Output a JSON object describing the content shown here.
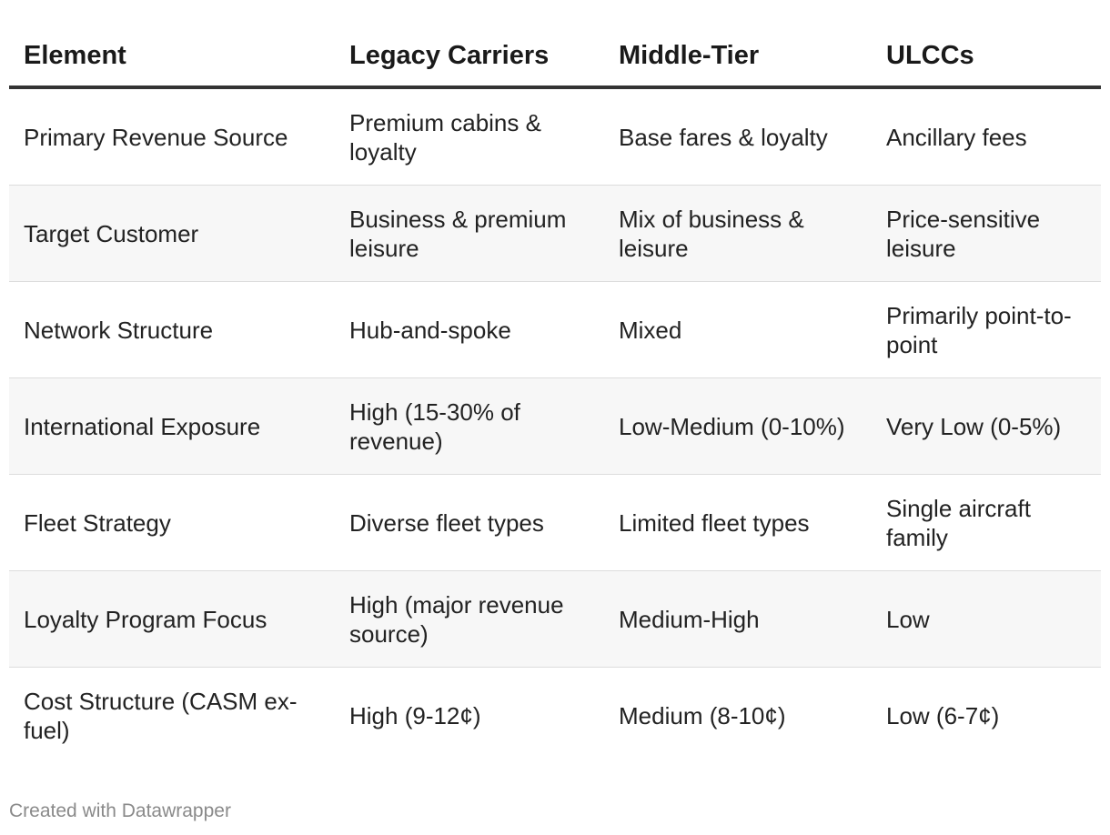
{
  "chart_data": {
    "type": "table",
    "columns": [
      "Element",
      "Legacy Carriers",
      "Middle-Tier",
      "ULCCs"
    ],
    "rows": [
      [
        "Primary Revenue Source",
        "Premium cabins & loyalty",
        "Base fares & loyalty",
        "Ancillary fees"
      ],
      [
        "Target Customer",
        "Business & premium leisure",
        "Mix of business & leisure",
        "Price-sensitive leisure"
      ],
      [
        "Network Structure",
        "Hub-and-spoke",
        "Mixed",
        "Primarily point-to-point"
      ],
      [
        "International Exposure",
        "High (15-30% of revenue)",
        "Low-Medium (0-10%)",
        "Very Low (0-5%)"
      ],
      [
        "Fleet Strategy",
        "Diverse fleet types",
        "Limited fleet types",
        "Single aircraft family"
      ],
      [
        "Loyalty Program Focus",
        "High (major revenue source)",
        "Medium-High",
        "Low"
      ],
      [
        "Cost Structure (CASM ex-fuel)",
        "High (9-12¢)",
        "Medium (8-10¢)",
        "Low (6-7¢)"
      ]
    ]
  },
  "footer": {
    "credit": "Created with Datawrapper"
  }
}
